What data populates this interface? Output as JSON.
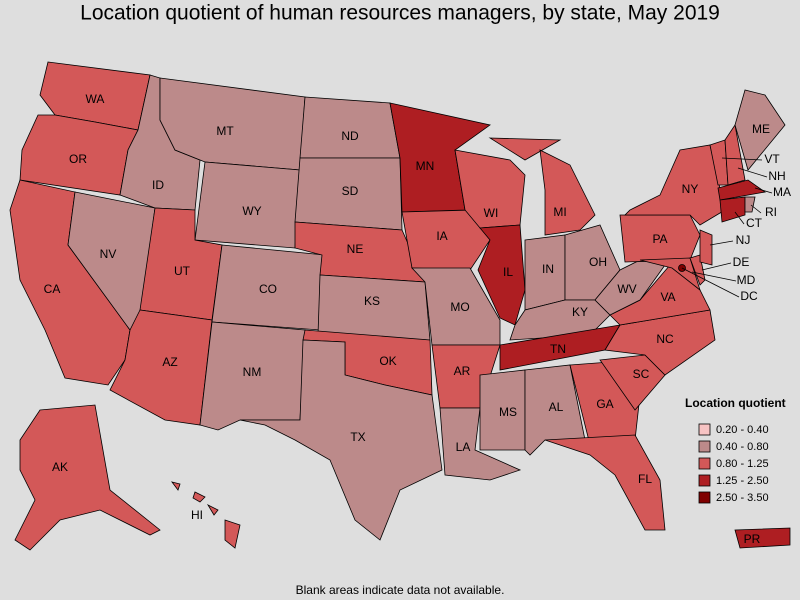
{
  "title": "Location quotient of human resources managers, by state, May 2019",
  "footnote": "Blank areas indicate data not available.",
  "legend": {
    "title": "Location quotient",
    "items": [
      {
        "label": "0.20 - 0.40",
        "color": "#f7c3c3"
      },
      {
        "label": "0.40 - 0.80",
        "color": "#bc8a8a"
      },
      {
        "label": "0.80 - 1.25",
        "color": "#d35858"
      },
      {
        "label": "1.25 - 2.50",
        "color": "#ae1e22"
      },
      {
        "label": "2.50 - 3.50",
        "color": "#7f0000"
      }
    ]
  },
  "states": [
    {
      "abbr": "WA",
      "color": "#d35858"
    },
    {
      "abbr": "OR",
      "color": "#d35858"
    },
    {
      "abbr": "CA",
      "color": "#d35858"
    },
    {
      "abbr": "NV",
      "color": "#bc8a8a"
    },
    {
      "abbr": "ID",
      "color": "#bc8a8a"
    },
    {
      "abbr": "MT",
      "color": "#bc8a8a"
    },
    {
      "abbr": "WY",
      "color": "#bc8a8a"
    },
    {
      "abbr": "UT",
      "color": "#d35858"
    },
    {
      "abbr": "AZ",
      "color": "#d35858"
    },
    {
      "abbr": "CO",
      "color": "#bc8a8a"
    },
    {
      "abbr": "NM",
      "color": "#bc8a8a"
    },
    {
      "abbr": "ND",
      "color": "#bc8a8a"
    },
    {
      "abbr": "SD",
      "color": "#bc8a8a"
    },
    {
      "abbr": "NE",
      "color": "#d35858"
    },
    {
      "abbr": "KS",
      "color": "#bc8a8a"
    },
    {
      "abbr": "OK",
      "color": "#d35858"
    },
    {
      "abbr": "TX",
      "color": "#bc8a8a"
    },
    {
      "abbr": "MN",
      "color": "#ae1e22"
    },
    {
      "abbr": "IA",
      "color": "#d35858"
    },
    {
      "abbr": "MO",
      "color": "#bc8a8a"
    },
    {
      "abbr": "AR",
      "color": "#d35858"
    },
    {
      "abbr": "LA",
      "color": "#bc8a8a"
    },
    {
      "abbr": "WI",
      "color": "#d35858"
    },
    {
      "abbr": "IL",
      "color": "#ae1e22"
    },
    {
      "abbr": "MI",
      "color": "#d35858"
    },
    {
      "abbr": "IN",
      "color": "#bc8a8a"
    },
    {
      "abbr": "OH",
      "color": "#bc8a8a"
    },
    {
      "abbr": "KY",
      "color": "#bc8a8a"
    },
    {
      "abbr": "TN",
      "color": "#ae1e22"
    },
    {
      "abbr": "MS",
      "color": "#bc8a8a"
    },
    {
      "abbr": "AL",
      "color": "#bc8a8a"
    },
    {
      "abbr": "GA",
      "color": "#d35858"
    },
    {
      "abbr": "FL",
      "color": "#d35858"
    },
    {
      "abbr": "SC",
      "color": "#d35858"
    },
    {
      "abbr": "NC",
      "color": "#d35858"
    },
    {
      "abbr": "VA",
      "color": "#d35858"
    },
    {
      "abbr": "WV",
      "color": "#bc8a8a"
    },
    {
      "abbr": "PA",
      "color": "#d35858"
    },
    {
      "abbr": "NY",
      "color": "#d35858"
    },
    {
      "abbr": "MD",
      "color": "#d35858"
    },
    {
      "abbr": "DE",
      "color": "#d35858"
    },
    {
      "abbr": "NJ",
      "color": "#d35858"
    },
    {
      "abbr": "VT",
      "color": "#d35858"
    },
    {
      "abbr": "NH",
      "color": "#d35858"
    },
    {
      "abbr": "ME",
      "color": "#bc8a8a"
    },
    {
      "abbr": "MA",
      "color": "#ae1e22"
    },
    {
      "abbr": "CT",
      "color": "#ae1e22"
    },
    {
      "abbr": "RI",
      "color": "#bc8a8a"
    },
    {
      "abbr": "DC",
      "color": "#7f0000"
    },
    {
      "abbr": "AK",
      "color": "#d35858"
    },
    {
      "abbr": "HI",
      "color": "#d35858"
    },
    {
      "abbr": "PR",
      "color": "#ae1e22"
    }
  ]
}
